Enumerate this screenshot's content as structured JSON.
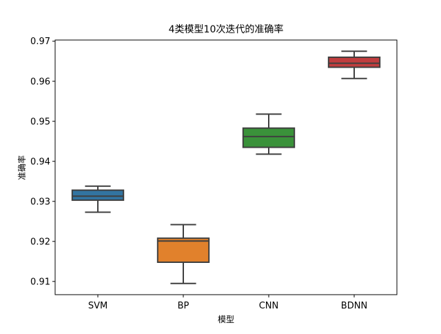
{
  "chart_data": {
    "type": "box",
    "title": "4类模型10次迭代的准确率",
    "xlabel": "模型",
    "ylabel": "准确率",
    "ylim": [
      0.9067,
      0.9703
    ],
    "yticks": [
      "0.91",
      "0.92",
      "0.93",
      "0.94",
      "0.95",
      "0.96",
      "0.97"
    ],
    "categories": [
      "SVM",
      "BP",
      "CNN",
      "BDNN"
    ],
    "colors": [
      "#3274a1",
      "#e1812c",
      "#3a923a",
      "#c03d3e"
    ],
    "boxes": [
      {
        "name": "SVM",
        "whislo": 0.9273,
        "q1": 0.9303,
        "med": 0.9313,
        "q3": 0.9328,
        "whishi": 0.9338
      },
      {
        "name": "BP",
        "whislo": 0.9095,
        "q1": 0.9148,
        "med": 0.9201,
        "q3": 0.9208,
        "whishi": 0.9242
      },
      {
        "name": "CNN",
        "whislo": 0.9418,
        "q1": 0.9435,
        "med": 0.9462,
        "q3": 0.9483,
        "whishi": 0.9518
      },
      {
        "name": "BDNN",
        "whislo": 0.9607,
        "q1": 0.9635,
        "med": 0.9645,
        "q3": 0.966,
        "whishi": 0.9675
      }
    ],
    "grid": false,
    "legend": "none"
  }
}
